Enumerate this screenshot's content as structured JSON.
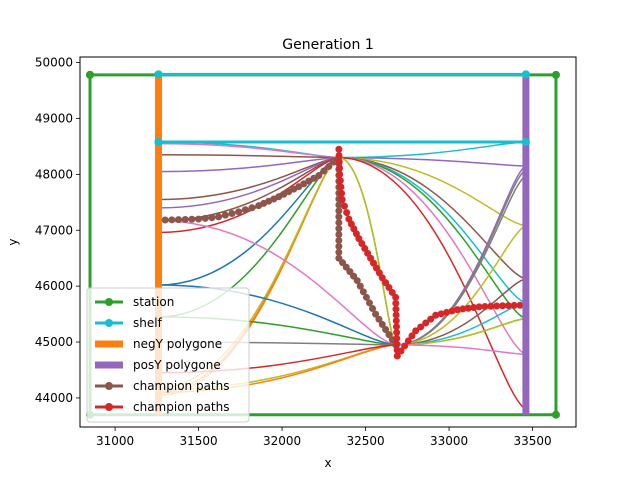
{
  "chart_data": {
    "type": "line",
    "title": "Generation 1",
    "xlabel": "x",
    "ylabel": "y",
    "xlim": [
      30790,
      33760
    ],
    "ylim": [
      43480,
      50100
    ],
    "xticks": [
      31000,
      31500,
      32000,
      32500,
      33000,
      33500
    ],
    "yticks": [
      44000,
      45000,
      46000,
      47000,
      48000,
      49000,
      50000
    ],
    "legend_position": "lower-left",
    "legend": [
      {
        "name": "station",
        "color": "#2ca02c",
        "kind": "line-marker"
      },
      {
        "name": "shelf",
        "color": "#17becf",
        "kind": "line-marker"
      },
      {
        "name": "negY polygone",
        "color": "#ff7f0e",
        "kind": "thick-line"
      },
      {
        "name": "posY polygone",
        "color": "#9467bd",
        "kind": "thick-line"
      },
      {
        "name": "champion paths",
        "color": "#8c564b",
        "kind": "line-marker"
      },
      {
        "name": "champion paths",
        "color": "#d62728",
        "kind": "line-marker"
      }
    ],
    "station": {
      "x": [
        30850,
        30850,
        33640,
        33640,
        30850
      ],
      "y": [
        49780,
        43700,
        43700,
        49780,
        49780
      ],
      "color": "#2ca02c"
    },
    "shelf": {
      "x": [
        31260,
        33460,
        33460,
        31260,
        31260
      ],
      "y": [
        49790,
        49790,
        48580,
        48580,
        49790
      ],
      "color": "#17becf"
    },
    "negY_polygone": {
      "x": [
        31260,
        31260
      ],
      "y": [
        43700,
        49790
      ],
      "color": "#ff7f0e"
    },
    "posY_polygone": {
      "x": [
        33460,
        33460
      ],
      "y": [
        43700,
        49790
      ],
      "color": "#9467bd"
    },
    "hubs": {
      "A": [
        32340,
        48300
      ],
      "B": [
        32680,
        44950
      ]
    },
    "paths": [
      {
        "from": [
          31260,
          48580
        ],
        "to": [
          32340,
          48300
        ],
        "color": "#17becf"
      },
      {
        "from": [
          31260,
          48550
        ],
        "to": [
          32340,
          48300
        ],
        "color": "#e377c2"
      },
      {
        "from": [
          31260,
          48350
        ],
        "to": [
          32340,
          48300
        ],
        "color": "#8c564b"
      },
      {
        "from": [
          31260,
          48050
        ],
        "to": [
          32340,
          48300
        ],
        "color": "#9467bd"
      },
      {
        "from": [
          31260,
          47550
        ],
        "to": [
          32340,
          48300
        ],
        "color": "#8c564b"
      },
      {
        "from": [
          31260,
          47400
        ],
        "to": [
          32340,
          48300
        ],
        "color": "#9467bd"
      },
      {
        "from": [
          31260,
          47170
        ],
        "to": [
          32340,
          48300
        ],
        "color": "#8c564b"
      },
      {
        "from": [
          31260,
          46960
        ],
        "to": [
          32340,
          48300
        ],
        "color": "#d62728"
      },
      {
        "from": [
          31260,
          46020
        ],
        "to": [
          32340,
          48300
        ],
        "color": "#1f77b4"
      },
      {
        "from": [
          31260,
          45450
        ],
        "to": [
          32340,
          48300
        ],
        "color": "#2ca02c"
      },
      {
        "from": [
          31260,
          44050
        ],
        "to": [
          32340,
          48300
        ],
        "color": "#ff7f0e"
      },
      {
        "from": [
          31260,
          44100
        ],
        "to": [
          32340,
          48300
        ],
        "color": "#ff7f0e"
      },
      {
        "from": [
          31260,
          44180
        ],
        "to": [
          32340,
          48300
        ],
        "color": "#bcbd22"
      },
      {
        "from": [
          31260,
          44150
        ],
        "to": [
          32680,
          44950
        ],
        "color": "#bcbd22"
      },
      {
        "from": [
          31260,
          44100
        ],
        "to": [
          32680,
          44950
        ],
        "color": "#ff7f0e"
      },
      {
        "from": [
          31260,
          47170
        ],
        "to": [
          32680,
          44950
        ],
        "color": "#e377c2"
      },
      {
        "from": [
          31260,
          46020
        ],
        "to": [
          32680,
          44950
        ],
        "color": "#1f77b4"
      },
      {
        "from": [
          31260,
          45450
        ],
        "to": [
          32680,
          44950
        ],
        "color": "#2ca02c"
      },
      {
        "from": [
          31260,
          45000
        ],
        "to": [
          32680,
          44950
        ],
        "color": "#7f7f7f"
      },
      {
        "from": [
          31260,
          44450
        ],
        "to": [
          32680,
          44950
        ],
        "color": "#d62728"
      },
      {
        "from": [
          32340,
          48300
        ],
        "to": [
          33460,
          48580
        ],
        "color": "#17becf"
      },
      {
        "from": [
          32340,
          48300
        ],
        "to": [
          33460,
          48150
        ],
        "color": "#9467bd"
      },
      {
        "from": [
          32340,
          48300
        ],
        "to": [
          33460,
          47080
        ],
        "color": "#bcbd22"
      },
      {
        "from": [
          32340,
          48300
        ],
        "to": [
          33460,
          46130
        ],
        "color": "#8c564b"
      },
      {
        "from": [
          32340,
          48300
        ],
        "to": [
          33460,
          45700
        ],
        "color": "#17becf"
      },
      {
        "from": [
          32340,
          48300
        ],
        "to": [
          33460,
          45420
        ],
        "color": "#2ca02c"
      },
      {
        "from": [
          32340,
          48300
        ],
        "to": [
          33460,
          44780
        ],
        "color": "#e377c2"
      },
      {
        "from": [
          32340,
          48300
        ],
        "to": [
          33460,
          43800
        ],
        "color": "#d62728"
      },
      {
        "from": [
          32340,
          48300
        ],
        "to": [
          32680,
          44950
        ],
        "color": "#2ca02c"
      },
      {
        "from": [
          32340,
          48300
        ],
        "to": [
          32680,
          44950
        ],
        "color": "#bcbd22"
      },
      {
        "from": [
          32680,
          44950
        ],
        "to": [
          33460,
          48150
        ],
        "color": "#9467bd"
      },
      {
        "from": [
          32680,
          44950
        ],
        "to": [
          33460,
          48080
        ],
        "color": "#7f7f7f"
      },
      {
        "from": [
          32680,
          44950
        ],
        "to": [
          33460,
          47970
        ],
        "color": "#7f7f7f"
      },
      {
        "from": [
          32680,
          44950
        ],
        "to": [
          33460,
          47080
        ],
        "color": "#bcbd22"
      },
      {
        "from": [
          32680,
          44950
        ],
        "to": [
          33460,
          46130
        ],
        "color": "#8c564b"
      },
      {
        "from": [
          32680,
          44950
        ],
        "to": [
          33460,
          45700
        ],
        "color": "#17becf"
      },
      {
        "from": [
          32680,
          44950
        ],
        "to": [
          33460,
          45420
        ],
        "color": "#2ca02c"
      },
      {
        "from": [
          32680,
          44950
        ],
        "to": [
          33460,
          45420
        ],
        "color": "#bcbd22"
      },
      {
        "from": [
          32680,
          44950
        ],
        "to": [
          33460,
          44780
        ],
        "color": "#e377c2"
      }
    ],
    "champion_brown": {
      "x": [
        31260,
        31380,
        31500,
        31620,
        31740,
        31860,
        31980,
        32100,
        32220,
        32340,
        32340,
        32450,
        32560,
        32680
      ],
      "y": [
        47180,
        47190,
        47200,
        47240,
        47330,
        47440,
        47600,
        47780,
        47980,
        48300,
        46500,
        46100,
        45500,
        44950
      ],
      "color": "#8c564b"
    },
    "champion_red": {
      "x": [
        32340,
        32345,
        32360,
        32400,
        32460,
        32530,
        32600,
        32680,
        32690,
        32800,
        32920,
        33050,
        33180,
        33320,
        33460
      ],
      "y": [
        48450,
        48000,
        47550,
        47200,
        46850,
        46500,
        46150,
        45800,
        44750,
        45200,
        45480,
        45580,
        45630,
        45650,
        45660
      ],
      "color": "#d62728"
    }
  }
}
